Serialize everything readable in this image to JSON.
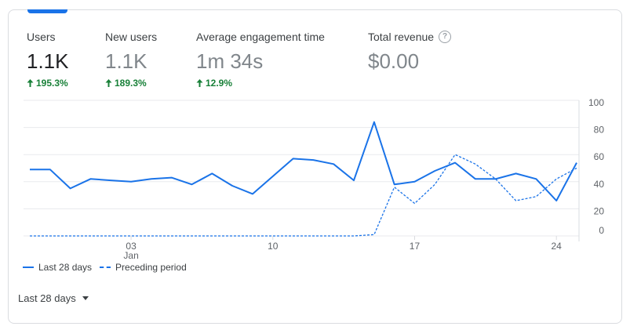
{
  "metrics": [
    {
      "label": "Users",
      "value": "1.1K",
      "change": "195.3%",
      "active": true
    },
    {
      "label": "New users",
      "value": "1.1K",
      "change": "189.3%",
      "active": false
    },
    {
      "label": "Average engagement time",
      "value": "1m 34s",
      "change": "12.9%",
      "active": false
    },
    {
      "label": "Total revenue",
      "value": "$0.00",
      "change": "",
      "active": false
    }
  ],
  "legend": {
    "current": "Last 28 days",
    "previous": "Preceding period"
  },
  "range_selector": {
    "label": "Last 28 days"
  },
  "colors": {
    "accent": "#1a73e8",
    "positive": "#188038",
    "grid": "#e8eaed"
  },
  "chart_data": {
    "type": "line",
    "ylim": [
      0,
      100
    ],
    "y_ticks": [
      "0",
      "20",
      "40",
      "60",
      "80",
      "100"
    ],
    "x_ticks": [
      {
        "label": "03",
        "sublabel": "Jan",
        "day_index": 5
      },
      {
        "label": "10",
        "sublabel": "",
        "day_index": 12
      },
      {
        "label": "17",
        "sublabel": "",
        "day_index": 19
      },
      {
        "label": "24",
        "sublabel": "",
        "day_index": 26
      }
    ],
    "series": [
      {
        "name": "Last 28 days",
        "style": "solid",
        "values": [
          49,
          49,
          35,
          42,
          41,
          40,
          42,
          43,
          38,
          46,
          37,
          31,
          44,
          57,
          56,
          53,
          41,
          84,
          38,
          40,
          48,
          54,
          42,
          42,
          46,
          42,
          26,
          54
        ]
      },
      {
        "name": "Preceding period",
        "style": "dashed",
        "values": [
          0,
          0,
          0,
          0,
          0,
          0,
          0,
          0,
          0,
          0,
          0,
          0,
          0,
          0,
          0,
          0,
          0,
          1,
          36,
          24,
          38,
          60,
          53,
          42,
          26,
          29,
          42,
          50
        ]
      }
    ]
  }
}
